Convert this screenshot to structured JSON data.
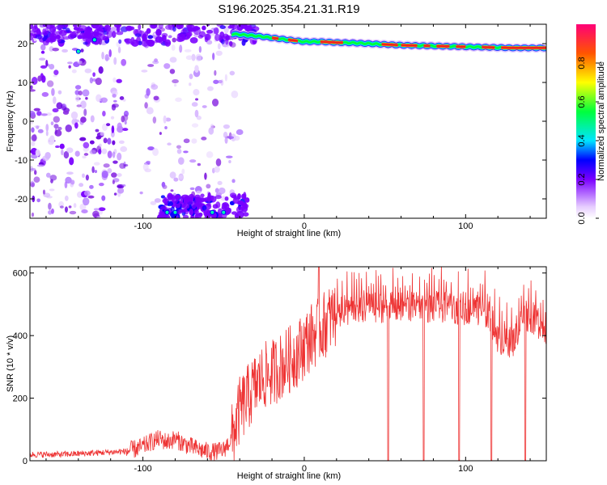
{
  "title": "S196.2025.354.21.31.R19",
  "chart_data": [
    {
      "type": "heatmap",
      "title": "S196.2025.354.21.31.R19",
      "xlabel": "Height of straight line (km)",
      "ylabel": "Frequency (Hz)",
      "xlim": [
        -170,
        150
      ],
      "ylim": [
        -25,
        25
      ],
      "xticks": [
        -100,
        0,
        100
      ],
      "yticks": [
        -20,
        -10,
        0,
        10,
        20
      ],
      "colorbar": {
        "label": "Normalized spectral amplitude",
        "range": [
          0,
          1
        ],
        "ticks": [
          0.0,
          0.2,
          0.4,
          0.6,
          0.8
        ]
      },
      "ridge": {
        "description_points_x": [
          -45,
          -30,
          -20,
          -10,
          0,
          10,
          20,
          30,
          40,
          50,
          60,
          70,
          80,
          90,
          100,
          110,
          120,
          130,
          140,
          150
        ],
        "frequency_hz": [
          22.5,
          22.0,
          21.5,
          21.0,
          20.5,
          20.5,
          20.3,
          20.2,
          20.0,
          19.8,
          19.6,
          19.5,
          19.4,
          19.3,
          19.2,
          19.1,
          19.0,
          18.9,
          18.9,
          18.9
        ]
      }
    },
    {
      "type": "line",
      "xlabel": "Height of straight line (km)",
      "ylabel": "SNR (10 * v/v)",
      "xlim": [
        -170,
        150
      ],
      "ylim": [
        0,
        620
      ],
      "xticks": [
        -100,
        0,
        100
      ],
      "yticks": [
        0,
        200,
        400,
        600
      ],
      "color": "#ee3333",
      "series": [
        {
          "x": [
            -170,
            -150,
            -130,
            -110,
            -100,
            -95,
            -90,
            -85,
            -80,
            -75,
            -70,
            -65,
            -60,
            -55,
            -50,
            -45,
            -40,
            -35,
            -30,
            -25,
            -20,
            -15,
            -10,
            -5,
            0,
            5,
            10,
            15,
            20,
            25,
            30,
            40,
            50,
            60,
            70,
            80,
            90,
            100,
            110,
            115,
            120,
            125,
            130,
            135,
            140,
            145,
            150
          ],
          "y": [
            20,
            20,
            25,
            30,
            45,
            60,
            70,
            60,
            70,
            55,
            45,
            35,
            30,
            28,
            35,
            70,
            160,
            200,
            240,
            270,
            280,
            300,
            320,
            340,
            370,
            400,
            420,
            450,
            470,
            480,
            480,
            490,
            490,
            490,
            490,
            490,
            490,
            480,
            480,
            460,
            390,
            380,
            380,
            460,
            460,
            440,
            420
          ]
        }
      ],
      "dropouts_x": [
        52,
        74,
        96,
        116,
        137
      ],
      "spike": {
        "x": 9,
        "y": 620
      }
    }
  ]
}
